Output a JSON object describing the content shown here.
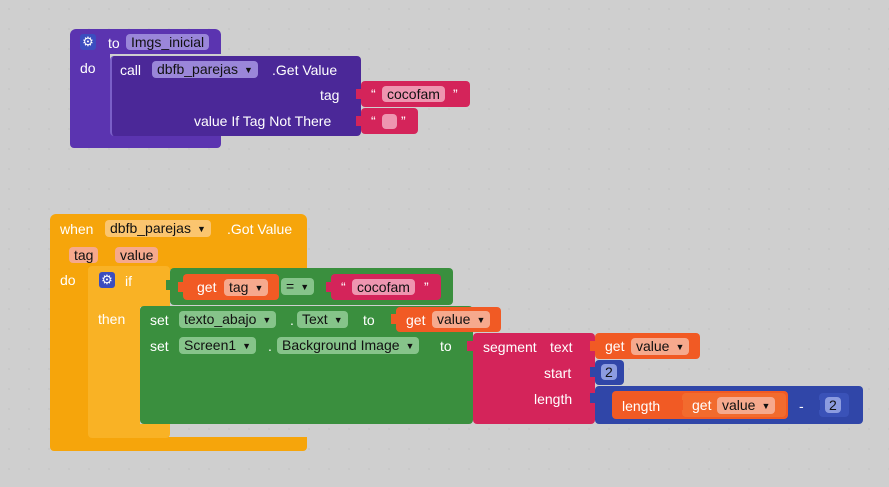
{
  "proc": {
    "to_kw": "to",
    "name": "Imgs_inicial",
    "do_kw": "do",
    "call_kw": "call",
    "component": "dbfb_parejas",
    "method": ".Get Value",
    "tag_label": "tag",
    "tag_value": "cocofam",
    "value_if_label": "value If Tag Not There",
    "value_if_value": ""
  },
  "event": {
    "when_kw": "when",
    "component": "dbfb_parejas",
    "event_name": ".Got Value",
    "param_tag": "tag",
    "param_value": "value",
    "do_kw": "do",
    "if_kw": "if",
    "then_kw": "then",
    "cond_get_kw": "get",
    "cond_var": "tag",
    "cond_op": "=",
    "cond_text": "cocofam",
    "set1_kw": "set",
    "set1_component": "texto_abajo",
    "set1_prop": "Text",
    "set1_to": "to",
    "set1_get_kw": "get",
    "set1_get_var": "value",
    "set2_kw": "set",
    "set2_component": "Screen1",
    "set2_prop": "Background Image",
    "set2_to": "to",
    "segment_kw": "segment",
    "segment_text_label": "text",
    "segment_get_kw": "get",
    "segment_get_var": "value",
    "start_label": "start",
    "start_value": "2",
    "length_label": "length",
    "length_kw": "length",
    "length_get_kw": "get",
    "length_get_var": "value",
    "minus_op": "-",
    "minus_value": "2"
  },
  "colors": {
    "procedure": "#5b34b0",
    "event": "#f6a50b",
    "control": "#3a8f3e",
    "text": "#d4245a",
    "variable": "#f15a24",
    "math": "#3046a8"
  }
}
